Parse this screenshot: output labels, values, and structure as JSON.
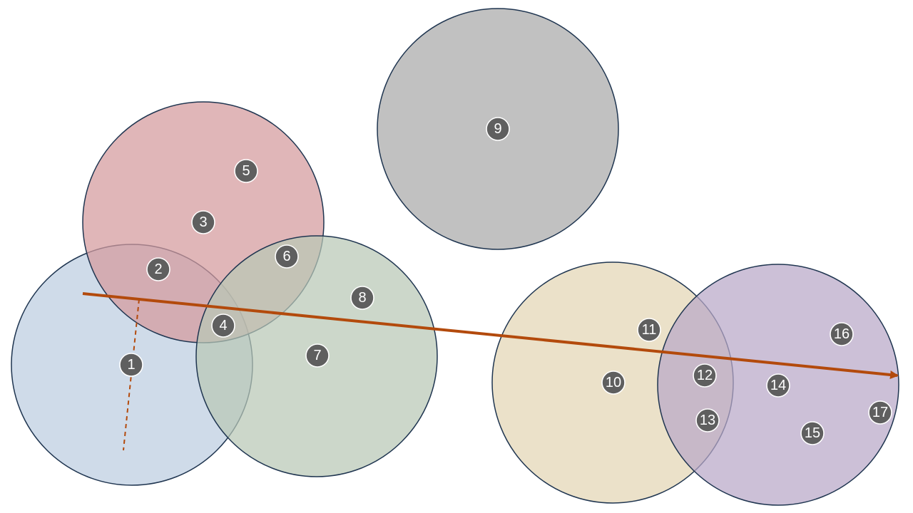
{
  "colors": {
    "background": "#ffffff",
    "circle_stroke": "#1f3550",
    "node_fill": "#5f5f5f",
    "arrow": "#b34a0c",
    "dashed_line": "#b34a0c"
  },
  "clusters": [
    {
      "name": "blue",
      "fill": "#bccde0"
    },
    {
      "name": "red",
      "fill": "#d49a9c"
    },
    {
      "name": "green",
      "fill": "#b9c8b6"
    },
    {
      "name": "gray",
      "fill": "#a9a9a9"
    },
    {
      "name": "tan",
      "fill": "#e3d6b4"
    },
    {
      "name": "purple",
      "fill": "#b9a8c7"
    }
  ],
  "nodes": [
    {
      "label": "1"
    },
    {
      "label": "2"
    },
    {
      "label": "3"
    },
    {
      "label": "4"
    },
    {
      "label": "5"
    },
    {
      "label": "6"
    },
    {
      "label": "7"
    },
    {
      "label": "8"
    },
    {
      "label": "9"
    },
    {
      "label": "10"
    },
    {
      "label": "11"
    },
    {
      "label": "12"
    },
    {
      "label": "13"
    },
    {
      "label": "14"
    },
    {
      "label": "15"
    },
    {
      "label": "16"
    },
    {
      "label": "17"
    }
  ],
  "arrow": {
    "head": "arrow-head"
  },
  "dashed_line": {
    "style": "dashed"
  }
}
